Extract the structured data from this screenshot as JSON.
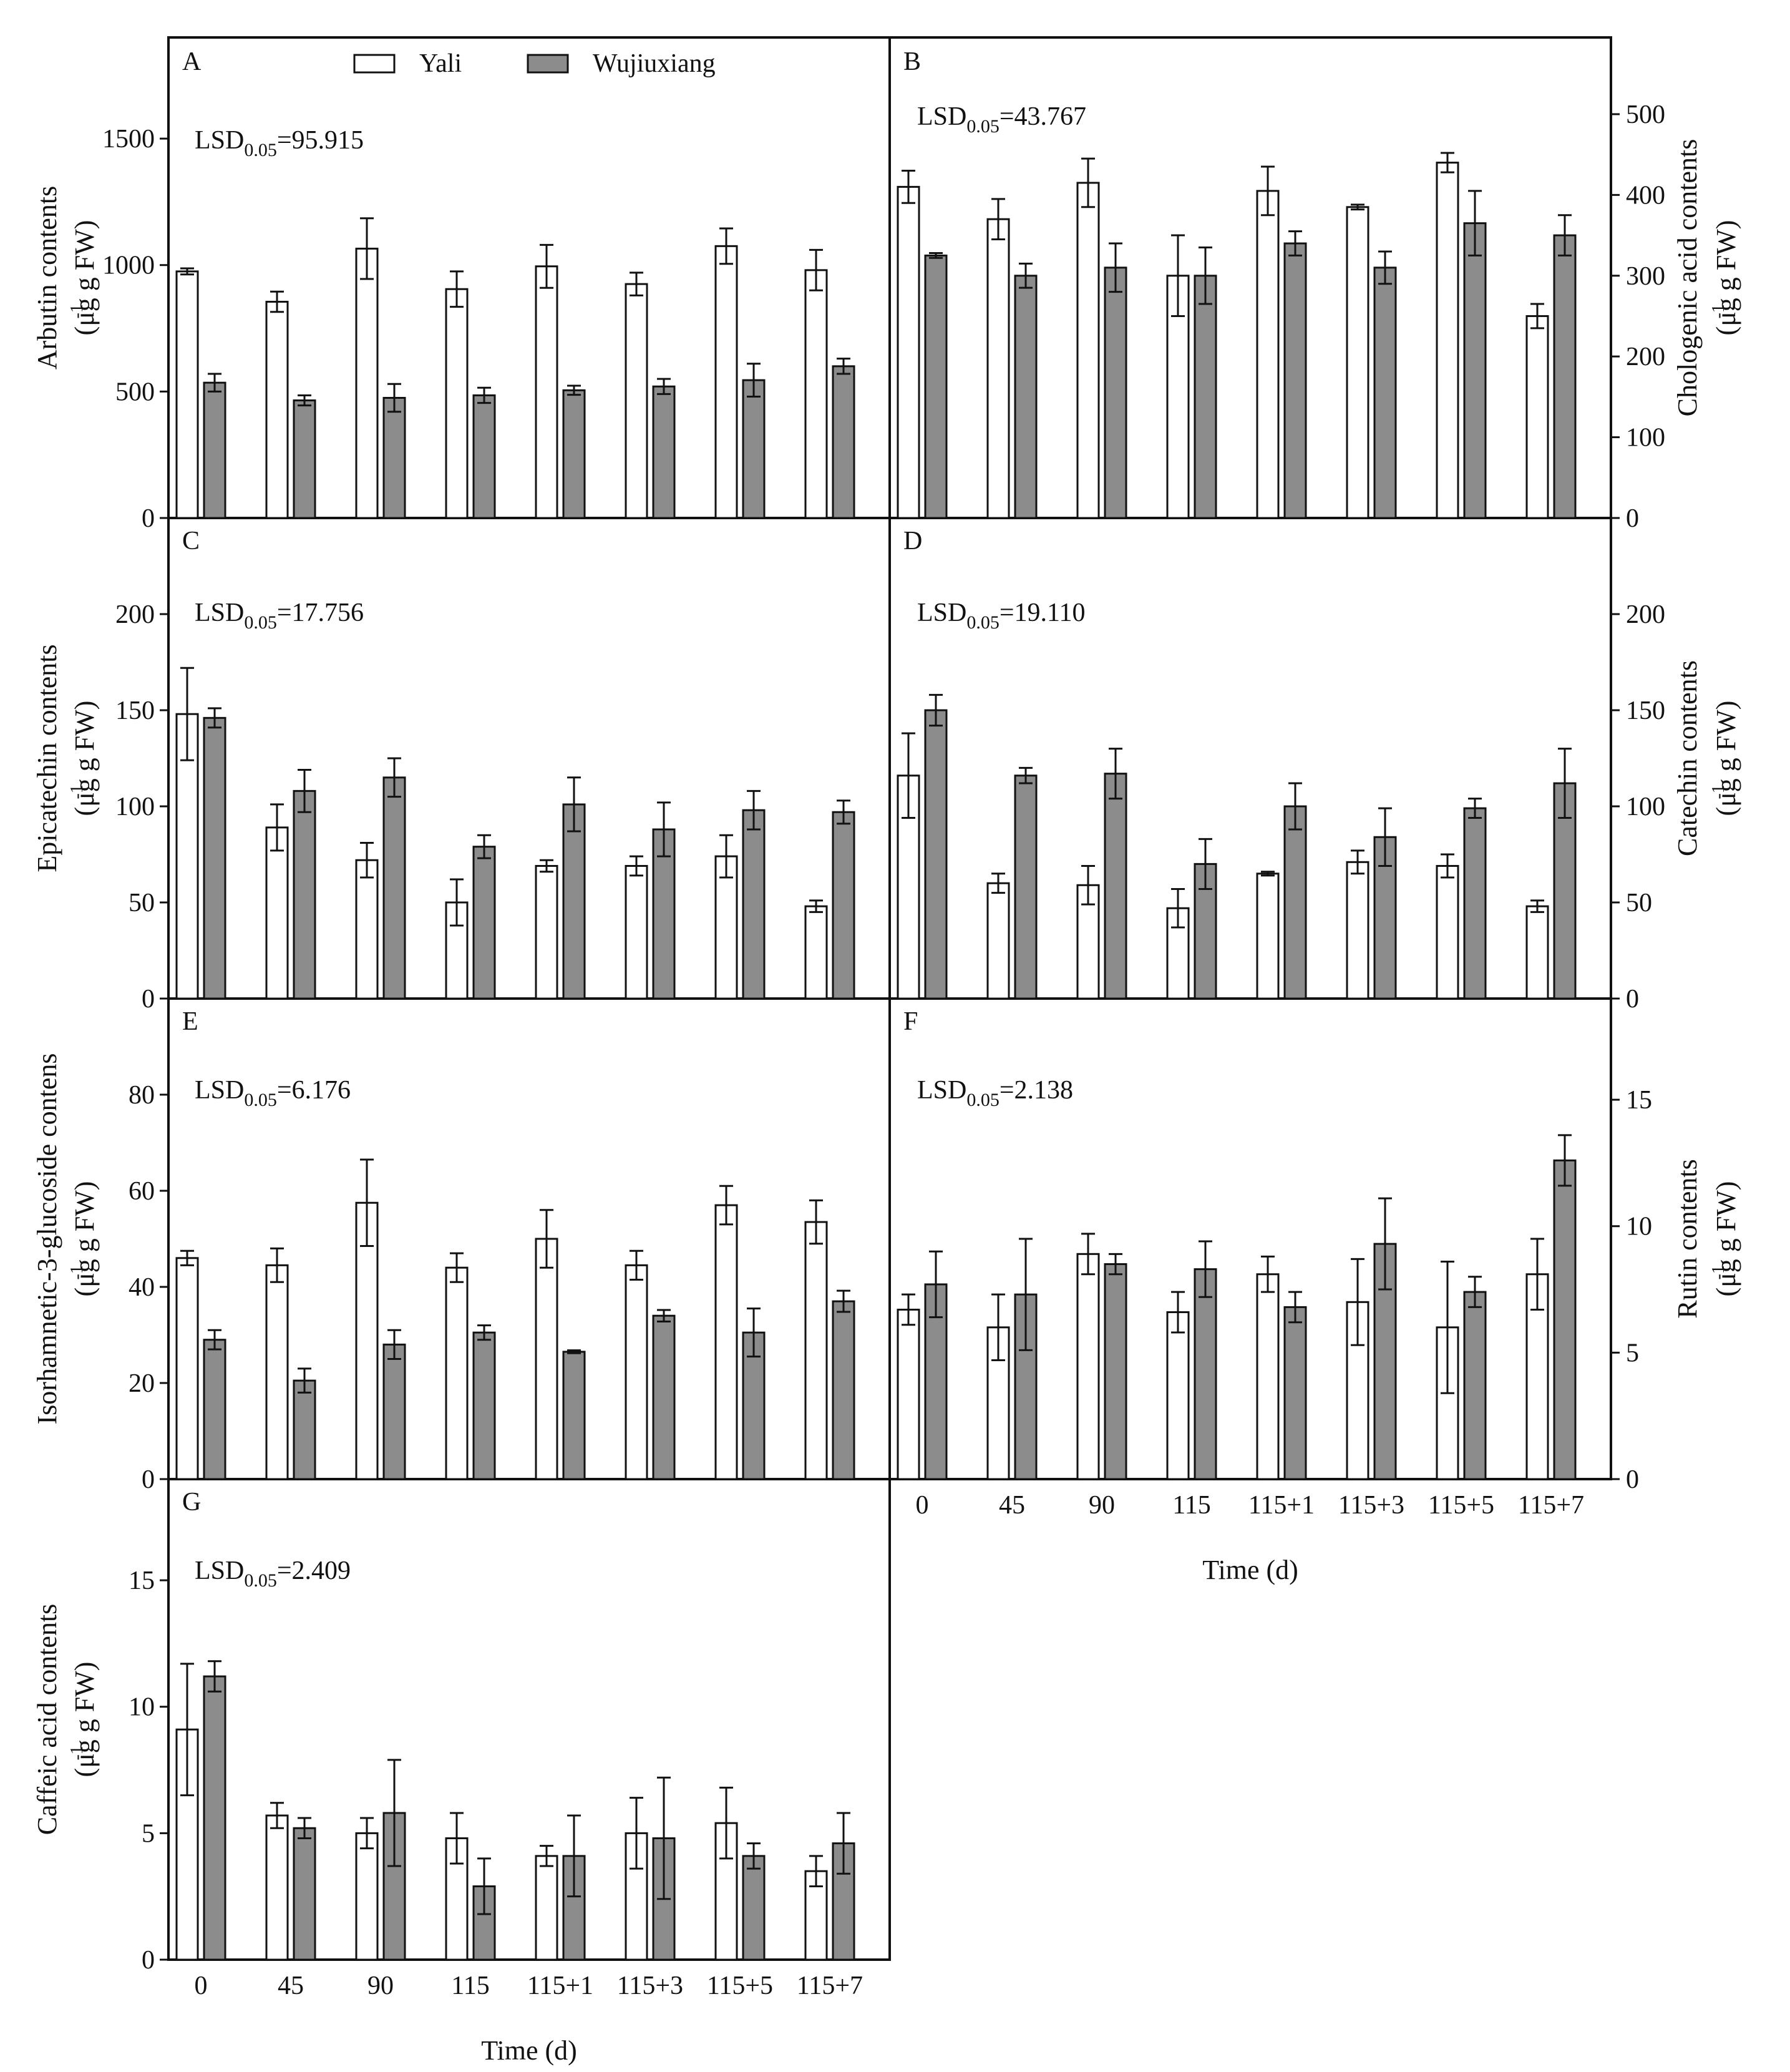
{
  "figure": {
    "categories": [
      "0",
      "45",
      "90",
      "115",
      "115+1",
      "115+3",
      "115+5",
      "115+7"
    ],
    "xlabel": "Time (d)",
    "legend": [
      {
        "name": "Yali",
        "color": "#ffffff"
      },
      {
        "name": "Wujiuxiang",
        "color": "#8c8c8c"
      }
    ],
    "lsd_prefix": "LSD",
    "lsd_subscript": "0.05",
    "ylabel_unit": "(μg g   FW)",
    "ylabel_superscript": "-1",
    "colors": {
      "axis": "#111111",
      "yali": "#ffffff",
      "wujiuxiang": "#8c8c8c"
    }
  },
  "chart_data": [
    {
      "panel": "A",
      "type": "bar",
      "ylabel": "Arbutin contents",
      "lsd_value": "=95.915",
      "ylim": [
        0,
        1900
      ],
      "yticks": [
        0,
        500,
        1000,
        1500
      ],
      "axis_side": "left",
      "categories": [
        "0",
        "45",
        "90",
        "115",
        "115+1",
        "115+3",
        "115+5",
        "115+7"
      ],
      "series": [
        {
          "name": "Yali",
          "values": [
            975,
            855,
            1065,
            905,
            995,
            925,
            1075,
            980
          ],
          "errors": [
            12,
            40,
            120,
            70,
            85,
            45,
            70,
            80
          ]
        },
        {
          "name": "Wujiuxiang",
          "values": [
            535,
            465,
            475,
            485,
            505,
            520,
            545,
            600
          ],
          "errors": [
            35,
            20,
            55,
            30,
            18,
            30,
            65,
            30
          ]
        }
      ]
    },
    {
      "panel": "B",
      "type": "bar",
      "ylabel": "Chologenic acid contents",
      "lsd_value": "=43.767",
      "ylim": [
        0,
        595
      ],
      "yticks": [
        0,
        100,
        200,
        300,
        400,
        500
      ],
      "axis_side": "right",
      "categories": [
        "0",
        "45",
        "90",
        "115",
        "115+1",
        "115+3",
        "115+5",
        "115+7"
      ],
      "series": [
        {
          "name": "Yali",
          "values": [
            410,
            370,
            415,
            300,
            405,
            385,
            440,
            250
          ],
          "errors": [
            20,
            25,
            30,
            50,
            30,
            3,
            12,
            15
          ]
        },
        {
          "name": "Wujiuxiang",
          "values": [
            325,
            300,
            310,
            300,
            340,
            310,
            365,
            350
          ],
          "errors": [
            3,
            15,
            30,
            35,
            15,
            20,
            40,
            25
          ]
        }
      ]
    },
    {
      "panel": "C",
      "type": "bar",
      "ylabel": "Epicatechin contents",
      "lsd_value": "=17.756",
      "ylim": [
        0,
        250
      ],
      "yticks": [
        0,
        50,
        100,
        150,
        200
      ],
      "axis_side": "left",
      "categories": [
        "0",
        "45",
        "90",
        "115",
        "115+1",
        "115+3",
        "115+5",
        "115+7"
      ],
      "series": [
        {
          "name": "Yali",
          "values": [
            148,
            89,
            72,
            50,
            69,
            69,
            74,
            48
          ],
          "errors": [
            24,
            12,
            9,
            12,
            3,
            5,
            11,
            3
          ]
        },
        {
          "name": "Wujiuxiang",
          "values": [
            146,
            108,
            115,
            79,
            101,
            88,
            98,
            97
          ],
          "errors": [
            5,
            11,
            10,
            6,
            14,
            14,
            10,
            6
          ]
        }
      ]
    },
    {
      "panel": "D",
      "type": "bar",
      "ylabel": "Catechin contents",
      "lsd_value": "=19.110",
      "ylim": [
        0,
        250
      ],
      "yticks": [
        0,
        50,
        100,
        150,
        200
      ],
      "axis_side": "right",
      "categories": [
        "0",
        "45",
        "90",
        "115",
        "115+1",
        "115+3",
        "115+5",
        "115+7"
      ],
      "series": [
        {
          "name": "Yali",
          "values": [
            116,
            60,
            59,
            47,
            65,
            71,
            69,
            48
          ],
          "errors": [
            22,
            5,
            10,
            10,
            1,
            6,
            6,
            3
          ]
        },
        {
          "name": "Wujiuxiang",
          "values": [
            150,
            116,
            117,
            70,
            100,
            84,
            99,
            112
          ],
          "errors": [
            8,
            4,
            13,
            13,
            12,
            15,
            5,
            18
          ]
        }
      ]
    },
    {
      "panel": "E",
      "type": "bar",
      "ylabel": "Isorhamnetic-3-glucoside contens",
      "lsd_value": "=6.176",
      "ylim": [
        0,
        100
      ],
      "yticks": [
        0,
        20,
        40,
        60,
        80
      ],
      "axis_side": "left",
      "categories": [
        "0",
        "45",
        "90",
        "115",
        "115+1",
        "115+3",
        "115+5",
        "115+7"
      ],
      "series": [
        {
          "name": "Yali",
          "values": [
            46,
            44.5,
            57.5,
            44,
            50,
            44.5,
            57,
            53.5
          ],
          "errors": [
            1.5,
            3.5,
            9,
            3,
            6,
            3,
            4,
            4.5
          ]
        },
        {
          "name": "Wujiuxiang",
          "values": [
            29,
            20.5,
            28,
            30.5,
            26.5,
            34,
            30.5,
            37
          ],
          "errors": [
            2,
            2.5,
            3,
            1.5,
            0.3,
            1.2,
            5,
            2.2
          ]
        }
      ]
    },
    {
      "panel": "F",
      "type": "bar",
      "ylabel": "Rutin contents",
      "lsd_value": "=2.138",
      "ylim": [
        0,
        19
      ],
      "yticks": [
        0,
        5,
        10,
        15
      ],
      "axis_side": "right",
      "categories": [
        "0",
        "45",
        "90",
        "115",
        "115+1",
        "115+3",
        "115+5",
        "115+7"
      ],
      "series": [
        {
          "name": "Yali",
          "values": [
            6.7,
            6.0,
            8.9,
            6.6,
            8.1,
            7.0,
            6.0,
            8.1
          ],
          "errors": [
            0.6,
            1.3,
            0.8,
            0.8,
            0.7,
            1.7,
            2.6,
            1.4
          ]
        },
        {
          "name": "Wujiuxiang",
          "values": [
            7.7,
            7.3,
            8.5,
            8.3,
            6.8,
            9.3,
            7.4,
            12.6
          ],
          "errors": [
            1.3,
            2.2,
            0.4,
            1.1,
            0.6,
            1.8,
            0.6,
            1.0
          ]
        }
      ]
    },
    {
      "panel": "G",
      "type": "bar",
      "ylabel": "Caffeic acid contents",
      "lsd_value": "=2.409",
      "ylim": [
        0,
        19
      ],
      "yticks": [
        0,
        5,
        10,
        15
      ],
      "axis_side": "left",
      "categories": [
        "0",
        "45",
        "90",
        "115",
        "115+1",
        "115+3",
        "115+5",
        "115+7"
      ],
      "series": [
        {
          "name": "Yali",
          "values": [
            9.1,
            5.7,
            5.0,
            4.8,
            4.1,
            5.0,
            5.4,
            3.5
          ],
          "errors": [
            2.6,
            0.5,
            0.6,
            1.0,
            0.4,
            1.4,
            1.4,
            0.6
          ]
        },
        {
          "name": "Wujiuxiang",
          "values": [
            11.2,
            5.2,
            5.8,
            2.9,
            4.1,
            4.8,
            4.1,
            4.6
          ],
          "errors": [
            0.6,
            0.4,
            2.1,
            1.1,
            1.6,
            2.4,
            0.5,
            1.2
          ]
        }
      ]
    }
  ]
}
